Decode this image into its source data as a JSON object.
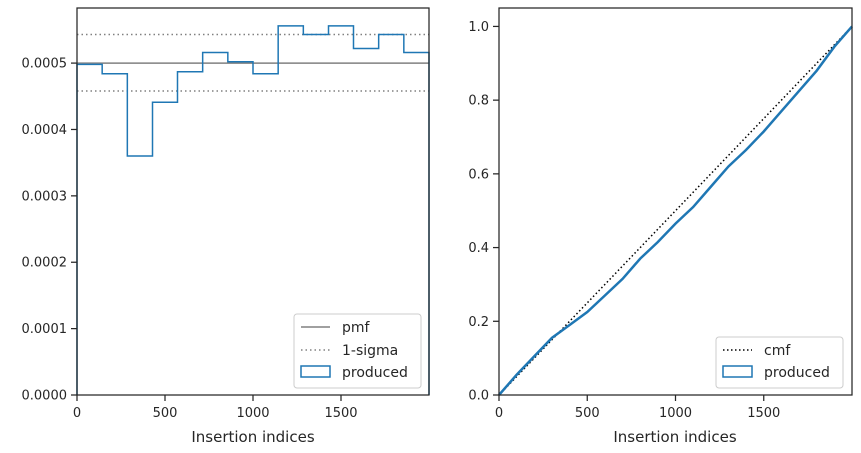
{
  "chart_data": [
    {
      "type": "histogram",
      "xlabel": "Insertion indices",
      "ylabel": "",
      "xlim": [
        0,
        2000
      ],
      "ylim": [
        0,
        0.000583
      ],
      "xticks": [
        0,
        500,
        1000,
        1500
      ],
      "xtick_labels": [
        "0",
        "500",
        "1000",
        "1500"
      ],
      "yticks": [
        0,
        0.0001,
        0.0002,
        0.0003,
        0.0004,
        0.0005
      ],
      "ytick_labels": [
        "0.0000",
        "0.0001",
        "0.0002",
        "0.0003",
        "0.0004",
        "0.0005"
      ],
      "legend_position": "lower-right",
      "bin_edges": [
        0,
        143,
        286,
        429,
        571,
        714,
        857,
        1000,
        1143,
        1286,
        1429,
        1571,
        1714,
        1857,
        2000
      ],
      "series": [
        {
          "name": "pmf",
          "kind": "hline",
          "y": 0.0005,
          "color": "#808080",
          "style": "solid"
        },
        {
          "name": "1-sigma",
          "kind": "hlines",
          "y": [
            0.000458,
            0.000543
          ],
          "color": "#808080",
          "style": "dotted"
        },
        {
          "name": "produced",
          "kind": "step",
          "color": "#1f77b4",
          "values": [
            0.000498,
            0.000484,
            0.00036,
            0.000441,
            0.000487,
            0.000516,
            0.000502,
            0.000484,
            0.000556,
            0.000543,
            0.000556,
            0.000522,
            0.000543,
            0.000516
          ]
        }
      ]
    },
    {
      "type": "line",
      "xlabel": "Insertion indices",
      "ylabel": "",
      "xlim": [
        0,
        2000
      ],
      "ylim": [
        0,
        1.05
      ],
      "xticks": [
        0,
        500,
        1000,
        1500
      ],
      "xtick_labels": [
        "0",
        "500",
        "1000",
        "1500"
      ],
      "yticks": [
        0,
        0.2,
        0.4,
        0.6,
        0.8,
        1.0
      ],
      "ytick_labels": [
        "0.0",
        "0.2",
        "0.4",
        "0.6",
        "0.8",
        "1.0"
      ],
      "legend_position": "lower-right",
      "series": [
        {
          "name": "cmf",
          "kind": "line",
          "color": "#000000",
          "style": "dotted",
          "x": [
            0,
            2000
          ],
          "y": [
            0,
            1.0
          ]
        },
        {
          "name": "produced",
          "kind": "line",
          "color": "#1f77b4",
          "style": "solid",
          "x": [
            0,
            100,
            200,
            300,
            400,
            500,
            600,
            700,
            800,
            900,
            1000,
            1100,
            1200,
            1300,
            1400,
            1500,
            1600,
            1700,
            1800,
            1900,
            2000
          ],
          "y": [
            0,
            0.055,
            0.105,
            0.155,
            0.19,
            0.225,
            0.27,
            0.315,
            0.37,
            0.415,
            0.465,
            0.51,
            0.565,
            0.62,
            0.665,
            0.715,
            0.77,
            0.825,
            0.88,
            0.945,
            1.0
          ]
        }
      ]
    }
  ]
}
